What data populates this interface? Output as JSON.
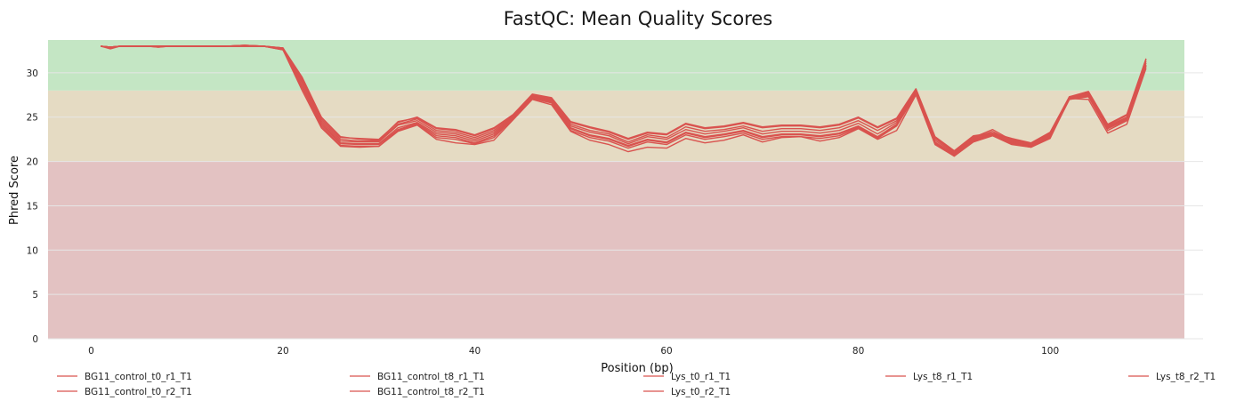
{
  "chart_data": {
    "type": "line",
    "title": "FastQC: Mean Quality Scores",
    "xlabel": "Position (bp)",
    "ylabel": "Phred Score",
    "xlim": [
      -4.5,
      114
    ],
    "ylim": [
      0,
      33.7
    ],
    "xticks": [
      0,
      20,
      40,
      60,
      80,
      100
    ],
    "yticks": [
      0,
      5,
      10,
      15,
      20,
      25,
      30
    ],
    "grid": true,
    "legend_position": "bottom",
    "zones": [
      {
        "from": 0,
        "to": 20,
        "color": "#e3c2c2"
      },
      {
        "from": 20,
        "to": 28,
        "color": "#e5dbc3"
      },
      {
        "from": 28,
        "to": 33.7,
        "color": "#c4e6c4"
      }
    ],
    "line_color": "#d9534f",
    "x": [
      1,
      2,
      3,
      4,
      5,
      6,
      7,
      8,
      9,
      10,
      12,
      14,
      16,
      18,
      20,
      22,
      24,
      26,
      28,
      30,
      32,
      34,
      36,
      38,
      40,
      42,
      44,
      46,
      48,
      50,
      52,
      54,
      56,
      58,
      60,
      62,
      64,
      66,
      68,
      70,
      72,
      74,
      76,
      78,
      80,
      82,
      84,
      86,
      88,
      90,
      92,
      94,
      96,
      98,
      100,
      102,
      104,
      106,
      108,
      110
    ],
    "series": [
      {
        "name": "BG11_control_t0_r1_T1",
        "values": [
          33.0,
          32.8,
          33.0,
          33.0,
          33.0,
          33.0,
          32.9,
          33.0,
          33.0,
          33.0,
          33.0,
          33.0,
          33.1,
          33.0,
          32.8,
          29.5,
          25.0,
          22.7,
          22.6,
          22.5,
          24.4,
          25.0,
          23.8,
          23.6,
          23.0,
          23.8,
          25.3,
          27.6,
          27.2,
          24.5,
          23.9,
          23.4,
          22.6,
          23.3,
          23.1,
          24.3,
          23.8,
          24.0,
          24.4,
          23.9,
          24.1,
          24.1,
          23.9,
          24.2,
          25.0,
          23.9,
          24.9,
          28.2,
          22.8,
          21.2,
          22.9,
          23.2,
          22.6,
          22.1,
          23.3,
          27.3,
          27.9,
          24.2,
          25.3,
          31.6
        ]
      },
      {
        "name": "BG11_control_t0_r2_T1",
        "values": [
          33.0,
          32.7,
          33.0,
          33.0,
          33.0,
          33.0,
          32.9,
          33.0,
          33.0,
          33.0,
          33.0,
          33.0,
          33.1,
          33.0,
          32.7,
          29.3,
          25.0,
          22.8,
          22.5,
          22.4,
          24.5,
          24.9,
          23.7,
          23.5,
          22.9,
          23.7,
          25.3,
          27.5,
          27.1,
          24.4,
          23.8,
          23.3,
          22.5,
          23.2,
          23.0,
          24.2,
          23.7,
          23.9,
          24.3,
          23.8,
          24.0,
          24.0,
          23.8,
          24.1,
          24.9,
          23.8,
          24.8,
          28.1,
          22.7,
          21.1,
          22.8,
          23.1,
          22.5,
          22.0,
          23.2,
          27.2,
          27.8,
          24.1,
          25.2,
          31.5
        ]
      },
      {
        "name": "BG11_control_t8_r1_T1",
        "values": [
          33.0,
          32.9,
          33.0,
          33.0,
          33.0,
          33.0,
          33.0,
          33.0,
          33.0,
          33.0,
          33.0,
          33.0,
          33.1,
          33.0,
          32.8,
          29.2,
          24.8,
          22.5,
          22.3,
          22.3,
          24.2,
          24.8,
          23.5,
          23.3,
          22.7,
          23.5,
          25.2,
          27.4,
          27.0,
          24.2,
          23.5,
          23.1,
          22.2,
          23.0,
          22.7,
          23.9,
          23.4,
          23.6,
          24.0,
          23.4,
          23.7,
          23.7,
          23.5,
          23.8,
          24.6,
          23.5,
          24.6,
          28.0,
          22.6,
          21.0,
          22.7,
          23.6,
          22.4,
          22.0,
          23.1,
          27.3,
          27.7,
          24.0,
          25.0,
          31.3
        ]
      },
      {
        "name": "BG11_control_t8_r2_T1",
        "values": [
          33.0,
          32.9,
          33.0,
          33.0,
          33.0,
          33.0,
          33.0,
          33.0,
          33.0,
          33.0,
          33.0,
          33.0,
          33.1,
          33.0,
          32.8,
          29.0,
          24.6,
          22.3,
          22.2,
          22.2,
          24.1,
          24.6,
          23.3,
          23.1,
          22.5,
          23.3,
          25.1,
          27.3,
          26.9,
          24.0,
          23.3,
          22.9,
          22.0,
          22.8,
          22.5,
          23.6,
          23.1,
          23.4,
          23.8,
          23.1,
          23.4,
          23.4,
          23.2,
          23.5,
          24.3,
          23.1,
          24.4,
          27.9,
          22.4,
          20.9,
          22.6,
          23.4,
          22.3,
          21.9,
          23.0,
          27.2,
          27.6,
          23.9,
          24.9,
          31.1
        ]
      },
      {
        "name": "Lys_t0_r1_T1",
        "values": [
          33.0,
          32.9,
          33.0,
          33.0,
          33.0,
          33.0,
          33.0,
          33.0,
          33.0,
          33.0,
          33.0,
          33.0,
          33.0,
          33.0,
          32.7,
          28.8,
          24.4,
          22.1,
          22.0,
          22.0,
          23.8,
          24.4,
          23.1,
          22.9,
          22.3,
          23.1,
          25.0,
          27.3,
          26.8,
          23.8,
          23.0,
          22.6,
          21.8,
          22.5,
          22.2,
          23.3,
          22.8,
          23.1,
          23.5,
          22.8,
          23.1,
          23.1,
          22.9,
          23.2,
          24.0,
          22.8,
          24.2,
          27.8,
          22.2,
          20.8,
          22.5,
          23.2,
          22.2,
          21.8,
          22.9,
          27.1,
          27.5,
          23.8,
          24.8,
          30.9
        ]
      },
      {
        "name": "Lys_t0_r2_T1",
        "values": [
          33.0,
          32.9,
          33.0,
          33.0,
          33.0,
          33.0,
          33.0,
          33.0,
          33.0,
          33.0,
          33.0,
          33.0,
          33.0,
          33.0,
          32.7,
          28.5,
          24.2,
          22.0,
          21.9,
          21.9,
          23.6,
          24.3,
          22.9,
          22.7,
          22.1,
          22.9,
          24.9,
          27.2,
          26.7,
          23.7,
          22.9,
          22.5,
          21.7,
          22.4,
          22.1,
          23.2,
          22.7,
          23.0,
          23.4,
          22.7,
          23.0,
          23.0,
          22.8,
          23.1,
          23.9,
          22.7,
          24.1,
          27.7,
          22.1,
          20.7,
          22.4,
          23.1,
          22.1,
          21.7,
          22.8,
          27.0,
          27.4,
          23.7,
          24.7,
          30.8
        ]
      },
      {
        "name": "Lys_t8_r1_T1",
        "values": [
          33.0,
          32.9,
          33.0,
          33.0,
          33.0,
          33.0,
          33.0,
          33.0,
          33.0,
          33.0,
          33.0,
          33.0,
          33.0,
          33.0,
          32.6,
          28.3,
          24.0,
          21.8,
          21.7,
          21.7,
          23.5,
          24.2,
          22.7,
          22.5,
          22.0,
          22.7,
          24.8,
          27.1,
          26.6,
          23.5,
          22.7,
          22.3,
          21.5,
          22.2,
          21.9,
          23.0,
          22.5,
          22.8,
          23.2,
          22.5,
          22.8,
          22.8,
          22.6,
          22.9,
          23.8,
          22.6,
          24.0,
          27.6,
          22.0,
          20.6,
          22.3,
          23.0,
          22.0,
          21.6,
          22.7,
          27.0,
          27.3,
          23.5,
          24.6,
          30.7
        ]
      },
      {
        "name": "Lys_t8_r2_T1",
        "values": [
          33.0,
          32.9,
          33.0,
          33.0,
          33.0,
          33.0,
          33.0,
          33.0,
          33.0,
          33.0,
          33.0,
          33.0,
          33.0,
          33.0,
          32.6,
          28.0,
          23.8,
          21.7,
          21.6,
          21.7,
          23.4,
          24.1,
          22.5,
          22.1,
          21.9,
          22.4,
          24.7,
          27.0,
          26.4,
          23.4,
          22.4,
          21.9,
          21.1,
          21.6,
          21.5,
          22.6,
          22.1,
          22.4,
          23.0,
          22.2,
          22.7,
          22.8,
          22.3,
          22.7,
          23.7,
          22.5,
          23.5,
          27.5,
          21.9,
          20.6,
          22.2,
          22.9,
          21.9,
          21.6,
          22.6,
          27.1,
          27.0,
          23.2,
          24.2,
          30.5
        ]
      }
    ]
  }
}
